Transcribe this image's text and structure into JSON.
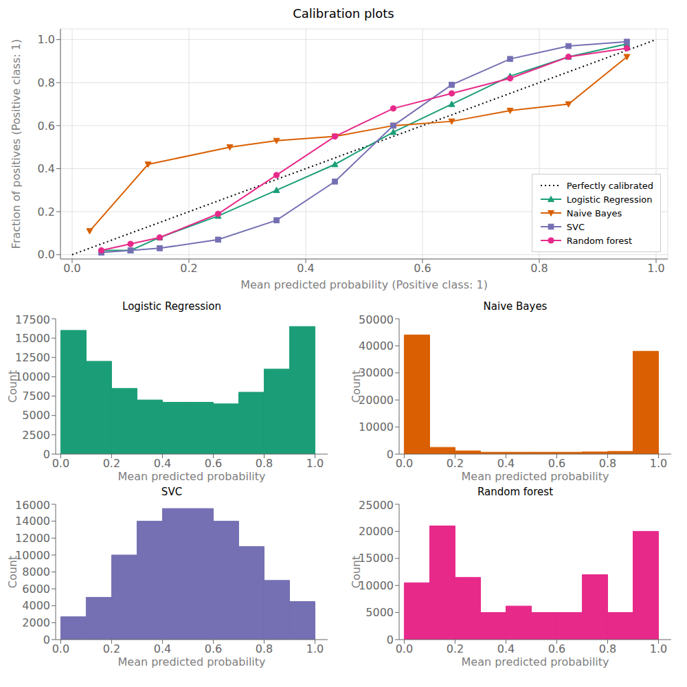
{
  "chart_data": [
    {
      "type": "line",
      "title": "Calibration plots",
      "x_label": "Mean predicted probability (Positive class: 1)",
      "y_label": "Fraction of positives (Positive class: 1)",
      "xlim": [
        -0.02,
        1.02
      ],
      "ylim": [
        -0.02,
        1.05
      ],
      "xticks": [
        {
          "value": 0.0,
          "label": "0.0"
        },
        0.2,
        0.4,
        0.6,
        0.8,
        {
          "value": 1.0,
          "label": "1.0"
        }
      ],
      "yticks": [
        {
          "value": 0.0,
          "label": "0.0"
        },
        0.2,
        0.4,
        0.6,
        0.8,
        {
          "value": 1.0,
          "label": "1.0"
        }
      ],
      "grid": true,
      "legend": "lower right",
      "series": [
        {
          "name": "Perfectly calibrated",
          "color": "black",
          "line_style": "dotted",
          "x": [
            0.0,
            1.0
          ],
          "values": [
            0.0,
            1.0
          ]
        },
        {
          "name": "Logistic Regression",
          "color": "#1b9e77",
          "marker": "triangle",
          "line_style": "solid",
          "x": [
            0.05,
            0.1,
            0.15,
            0.25,
            0.35,
            0.45,
            0.55,
            0.65,
            0.75,
            0.85,
            0.95
          ],
          "values": [
            0.02,
            0.02,
            0.08,
            0.18,
            0.3,
            0.42,
            0.57,
            0.7,
            0.83,
            0.92,
            0.98
          ]
        },
        {
          "name": "Naive Bayes",
          "color": "#d95f02",
          "marker": "triangle-down",
          "line_style": "solid",
          "x": [
            0.03,
            0.13,
            0.27,
            0.35,
            0.45,
            0.55,
            0.65,
            0.75,
            0.85,
            0.95
          ],
          "values": [
            0.11,
            0.42,
            0.5,
            0.53,
            0.55,
            0.6,
            0.62,
            0.67,
            0.7,
            0.92
          ]
        },
        {
          "name": "SVC",
          "color": "#7570b3",
          "marker": "square",
          "line_style": "solid",
          "x": [
            0.05,
            0.1,
            0.15,
            0.25,
            0.35,
            0.45,
            0.55,
            0.65,
            0.75,
            0.85,
            0.95
          ],
          "values": [
            0.01,
            0.02,
            0.03,
            0.07,
            0.16,
            0.34,
            0.6,
            0.79,
            0.91,
            0.97,
            0.99
          ]
        },
        {
          "name": "Random forest",
          "color": "#e7298a",
          "marker": "circle",
          "line_style": "solid",
          "x": [
            0.05,
            0.1,
            0.15,
            0.25,
            0.35,
            0.45,
            0.55,
            0.65,
            0.75,
            0.85,
            0.95
          ],
          "values": [
            0.02,
            0.05,
            0.08,
            0.19,
            0.37,
            0.55,
            0.68,
            0.75,
            0.82,
            0.92,
            0.96
          ]
        }
      ]
    },
    {
      "type": "histogram",
      "title": "Logistic Regression",
      "x_label": "Mean predicted probability",
      "y_label": "Count",
      "color": "#1b9e77",
      "bins": [
        0.0,
        0.1,
        0.2,
        0.3,
        0.4,
        0.5,
        0.6,
        0.7,
        0.8,
        0.9,
        1.0
      ],
      "values": [
        16000,
        12000,
        8500,
        7000,
        6700,
        6700,
        6500,
        8000,
        11000,
        16500
      ],
      "xlim": [
        -0.02,
        1.05
      ],
      "xticks": [
        {
          "value": 0.0,
          "label": "0.0"
        },
        0.2,
        0.4,
        0.6,
        0.8,
        {
          "value": 1.0,
          "label": "1.0"
        }
      ],
      "ylim": [
        0,
        17500
      ],
      "yticks": [
        0,
        2500,
        5000,
        7500,
        10000,
        12500,
        15000,
        17500
      ],
      "grid": false
    },
    {
      "type": "histogram",
      "title": "Naive Bayes",
      "x_label": "Mean predicted probability",
      "y_label": "Count",
      "color": "#d95f02",
      "bins": [
        0.0,
        0.1,
        0.2,
        0.3,
        0.4,
        0.5,
        0.6,
        0.7,
        0.8,
        0.9,
        1.0
      ],
      "values": [
        44000,
        2500,
        1200,
        700,
        700,
        700,
        700,
        800,
        1000,
        38000
      ],
      "xlim": [
        -0.02,
        1.05
      ],
      "xticks": [
        {
          "value": 0.0,
          "label": "0.0"
        },
        0.2,
        0.4,
        0.6,
        0.8,
        {
          "value": 1.0,
          "label": "1.0"
        }
      ],
      "ylim": [
        0,
        50000
      ],
      "yticks": [
        0,
        10000,
        20000,
        30000,
        40000,
        50000
      ],
      "grid": false
    },
    {
      "type": "histogram",
      "title": "SVC",
      "x_label": "Mean predicted probability",
      "y_label": "Count",
      "color": "#7570b3",
      "bins": [
        0.0,
        0.1,
        0.2,
        0.3,
        0.4,
        0.5,
        0.6,
        0.7,
        0.8,
        0.9,
        1.0
      ],
      "values": [
        2700,
        5000,
        10000,
        14000,
        15500,
        15500,
        14000,
        11000,
        7000,
        4500
      ],
      "xlim": [
        -0.02,
        1.05
      ],
      "xticks": [
        {
          "value": 0.0,
          "label": "0.0"
        },
        0.2,
        0.4,
        0.6,
        0.8,
        {
          "value": 1.0,
          "label": "1.0"
        }
      ],
      "ylim": [
        0,
        16000
      ],
      "yticks": [
        0,
        2000,
        4000,
        6000,
        8000,
        10000,
        12000,
        14000,
        16000
      ],
      "grid": false
    },
    {
      "type": "histogram",
      "title": "Random forest",
      "x_label": "Mean predicted probability",
      "y_label": "Count",
      "color": "#e7298a",
      "bins": [
        0.0,
        0.1,
        0.2,
        0.3,
        0.4,
        0.5,
        0.6,
        0.7,
        0.8,
        0.9,
        1.0
      ],
      "values": [
        10500,
        21000,
        11500,
        5000,
        6200,
        5000,
        5000,
        12000,
        5000,
        20000
      ],
      "xlim": [
        -0.02,
        1.05
      ],
      "xticks": [
        {
          "value": 0.0,
          "label": "0.0"
        },
        0.2,
        0.4,
        0.6,
        0.8,
        {
          "value": 1.0,
          "label": "1.0"
        }
      ],
      "ylim": [
        0,
        25000
      ],
      "yticks": [
        0,
        5000,
        10000,
        15000,
        20000,
        25000
      ],
      "grid": false
    }
  ]
}
